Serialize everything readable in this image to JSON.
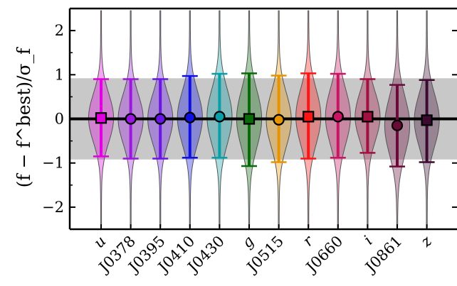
{
  "chart_data": {
    "type": "violin",
    "ylabel": "(f − f^best)/σ_f",
    "ylim": [
      -2.5,
      2.5
    ],
    "yticks": [
      -2,
      -1,
      0,
      1,
      2
    ],
    "ytick_labels": [
      "−2",
      "−1",
      "0",
      "1",
      "2"
    ],
    "band": [
      -0.92,
      0.92
    ],
    "reference_line": 0,
    "grid": false,
    "categories": [
      "u",
      "J0378",
      "J0395",
      "J0410",
      "J0430",
      "g",
      "J0515",
      "r",
      "J0660",
      "i",
      "J0861",
      "z"
    ],
    "series": [
      {
        "category": "u",
        "median": 0.02,
        "lower": -0.85,
        "upper": 0.9,
        "marker": "square",
        "color": "#e000e0"
      },
      {
        "category": "J0378",
        "median": 0.0,
        "lower": -0.9,
        "upper": 0.9,
        "marker": "circle",
        "color": "#9b16e0"
      },
      {
        "category": "J0395",
        "median": 0.0,
        "lower": -0.9,
        "upper": 0.9,
        "marker": "circle",
        "color": "#6a14e8"
      },
      {
        "category": "J0410",
        "median": 0.03,
        "lower": -0.88,
        "upper": 0.97,
        "marker": "circle",
        "color": "#1010e6"
      },
      {
        "category": "J0430",
        "median": 0.05,
        "lower": -0.88,
        "upper": 1.02,
        "marker": "circle",
        "color": "#0a9ea6"
      },
      {
        "category": "g",
        "median": 0.0,
        "lower": -1.07,
        "upper": 1.03,
        "marker": "square",
        "color": "#0a6a0a"
      },
      {
        "category": "J0515",
        "median": -0.02,
        "lower": -0.98,
        "upper": 0.98,
        "marker": "circle",
        "color": "#e89400"
      },
      {
        "category": "r",
        "median": 0.05,
        "lower": -0.9,
        "upper": 1.03,
        "marker": "square",
        "color": "#ff1414"
      },
      {
        "category": "J0660",
        "median": 0.05,
        "lower": -0.88,
        "upper": 1.02,
        "marker": "circle",
        "color": "#cc1464"
      },
      {
        "category": "i",
        "median": 0.05,
        "lower": -0.77,
        "upper": 0.9,
        "marker": "square",
        "color": "#a01040"
      },
      {
        "category": "J0861",
        "median": -0.15,
        "lower": -1.08,
        "upper": 0.77,
        "marker": "circle",
        "color": "#6a0a38"
      },
      {
        "category": "z",
        "median": -0.03,
        "lower": -0.98,
        "upper": 0.88,
        "marker": "square",
        "color": "#3c0a30"
      }
    ]
  }
}
